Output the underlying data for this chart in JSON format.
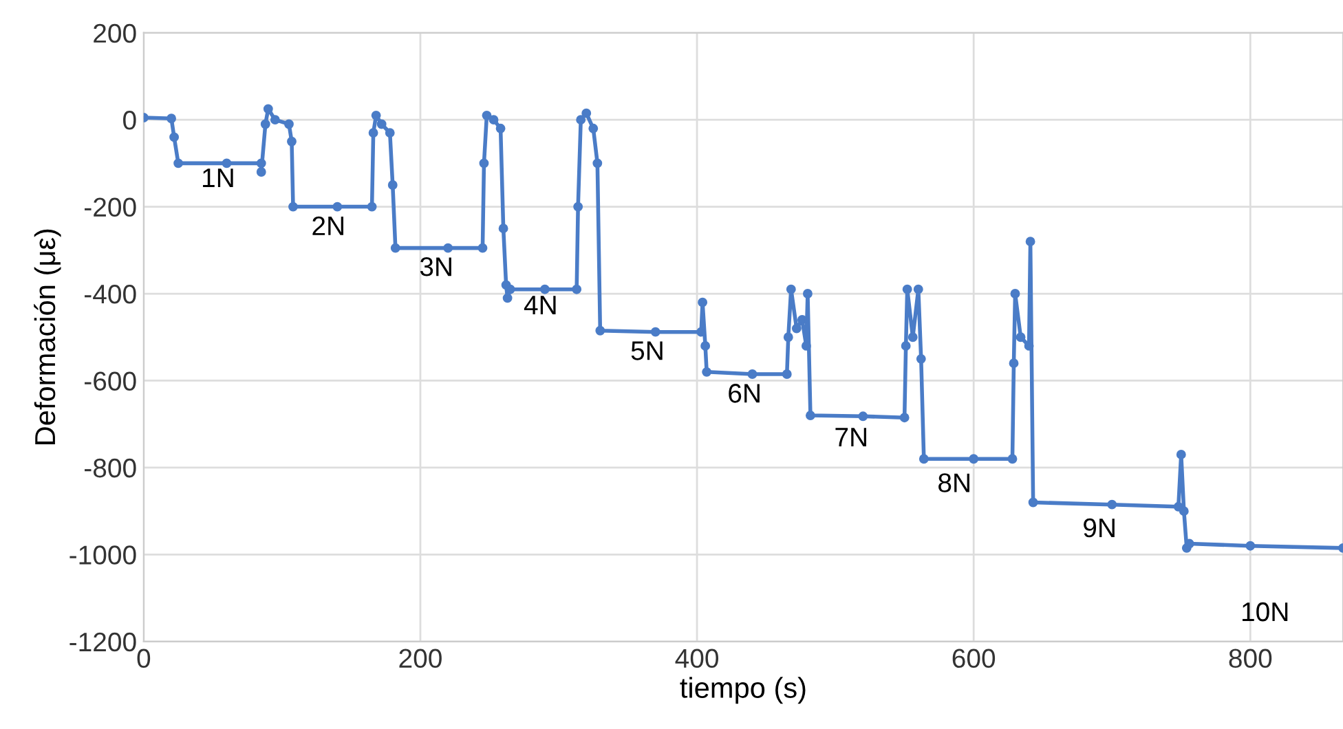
{
  "chart_data": {
    "type": "line",
    "xlabel": "tiempo (s)",
    "ylabel": "Deformación (με)",
    "xlim": [
      0,
      867
    ],
    "ylim": [
      -1200,
      200
    ],
    "xticks": [
      0,
      200,
      400,
      600,
      800
    ],
    "yticks": [
      -1200,
      -1000,
      -800,
      -600,
      -400,
      -200,
      0,
      200
    ],
    "grid": true,
    "marker": "circle",
    "line_style": "solid",
    "series": [
      {
        "color": "#4a7cc7",
        "x": [
          0,
          20,
          22,
          25,
          60,
          85,
          85,
          88,
          90,
          95,
          105,
          107,
          108,
          140,
          165,
          166,
          168,
          172,
          178,
          180,
          182,
          220,
          245,
          246,
          248,
          253,
          258,
          260,
          262,
          263,
          265,
          290,
          313,
          314,
          316,
          320,
          325,
          328,
          330,
          370,
          403,
          404,
          406,
          407,
          440,
          465,
          466,
          468,
          472,
          476,
          479,
          480,
          482,
          520,
          550,
          551,
          552,
          556,
          560,
          562,
          564,
          600,
          628,
          629,
          630,
          634,
          640,
          641,
          643,
          700,
          748,
          750,
          752,
          754,
          756,
          800,
          867
        ],
        "values": [
          5,
          3,
          -40,
          -100,
          -100,
          -100,
          -120,
          -10,
          25,
          0,
          -10,
          -50,
          -200,
          -200,
          -200,
          -30,
          10,
          -10,
          -30,
          -150,
          -295,
          -295,
          -295,
          -100,
          10,
          0,
          -20,
          -250,
          -380,
          -410,
          -390,
          -390,
          -390,
          -200,
          0,
          15,
          -20,
          -100,
          -485,
          -488,
          -488,
          -420,
          -520,
          -580,
          -585,
          -585,
          -500,
          -390,
          -480,
          -460,
          -520,
          -400,
          -680,
          -682,
          -685,
          -520,
          -390,
          -500,
          -390,
          -550,
          -780,
          -780,
          -780,
          -560,
          -400,
          -500,
          -520,
          -280,
          -880,
          -885,
          -890,
          -770,
          -900,
          -985,
          -975,
          -980,
          -985
        ]
      }
    ],
    "annotations": [
      "1N",
      "2N",
      "3N",
      "4N",
      "5N",
      "6N",
      "7N",
      "8N",
      "9N",
      "10N"
    ]
  }
}
